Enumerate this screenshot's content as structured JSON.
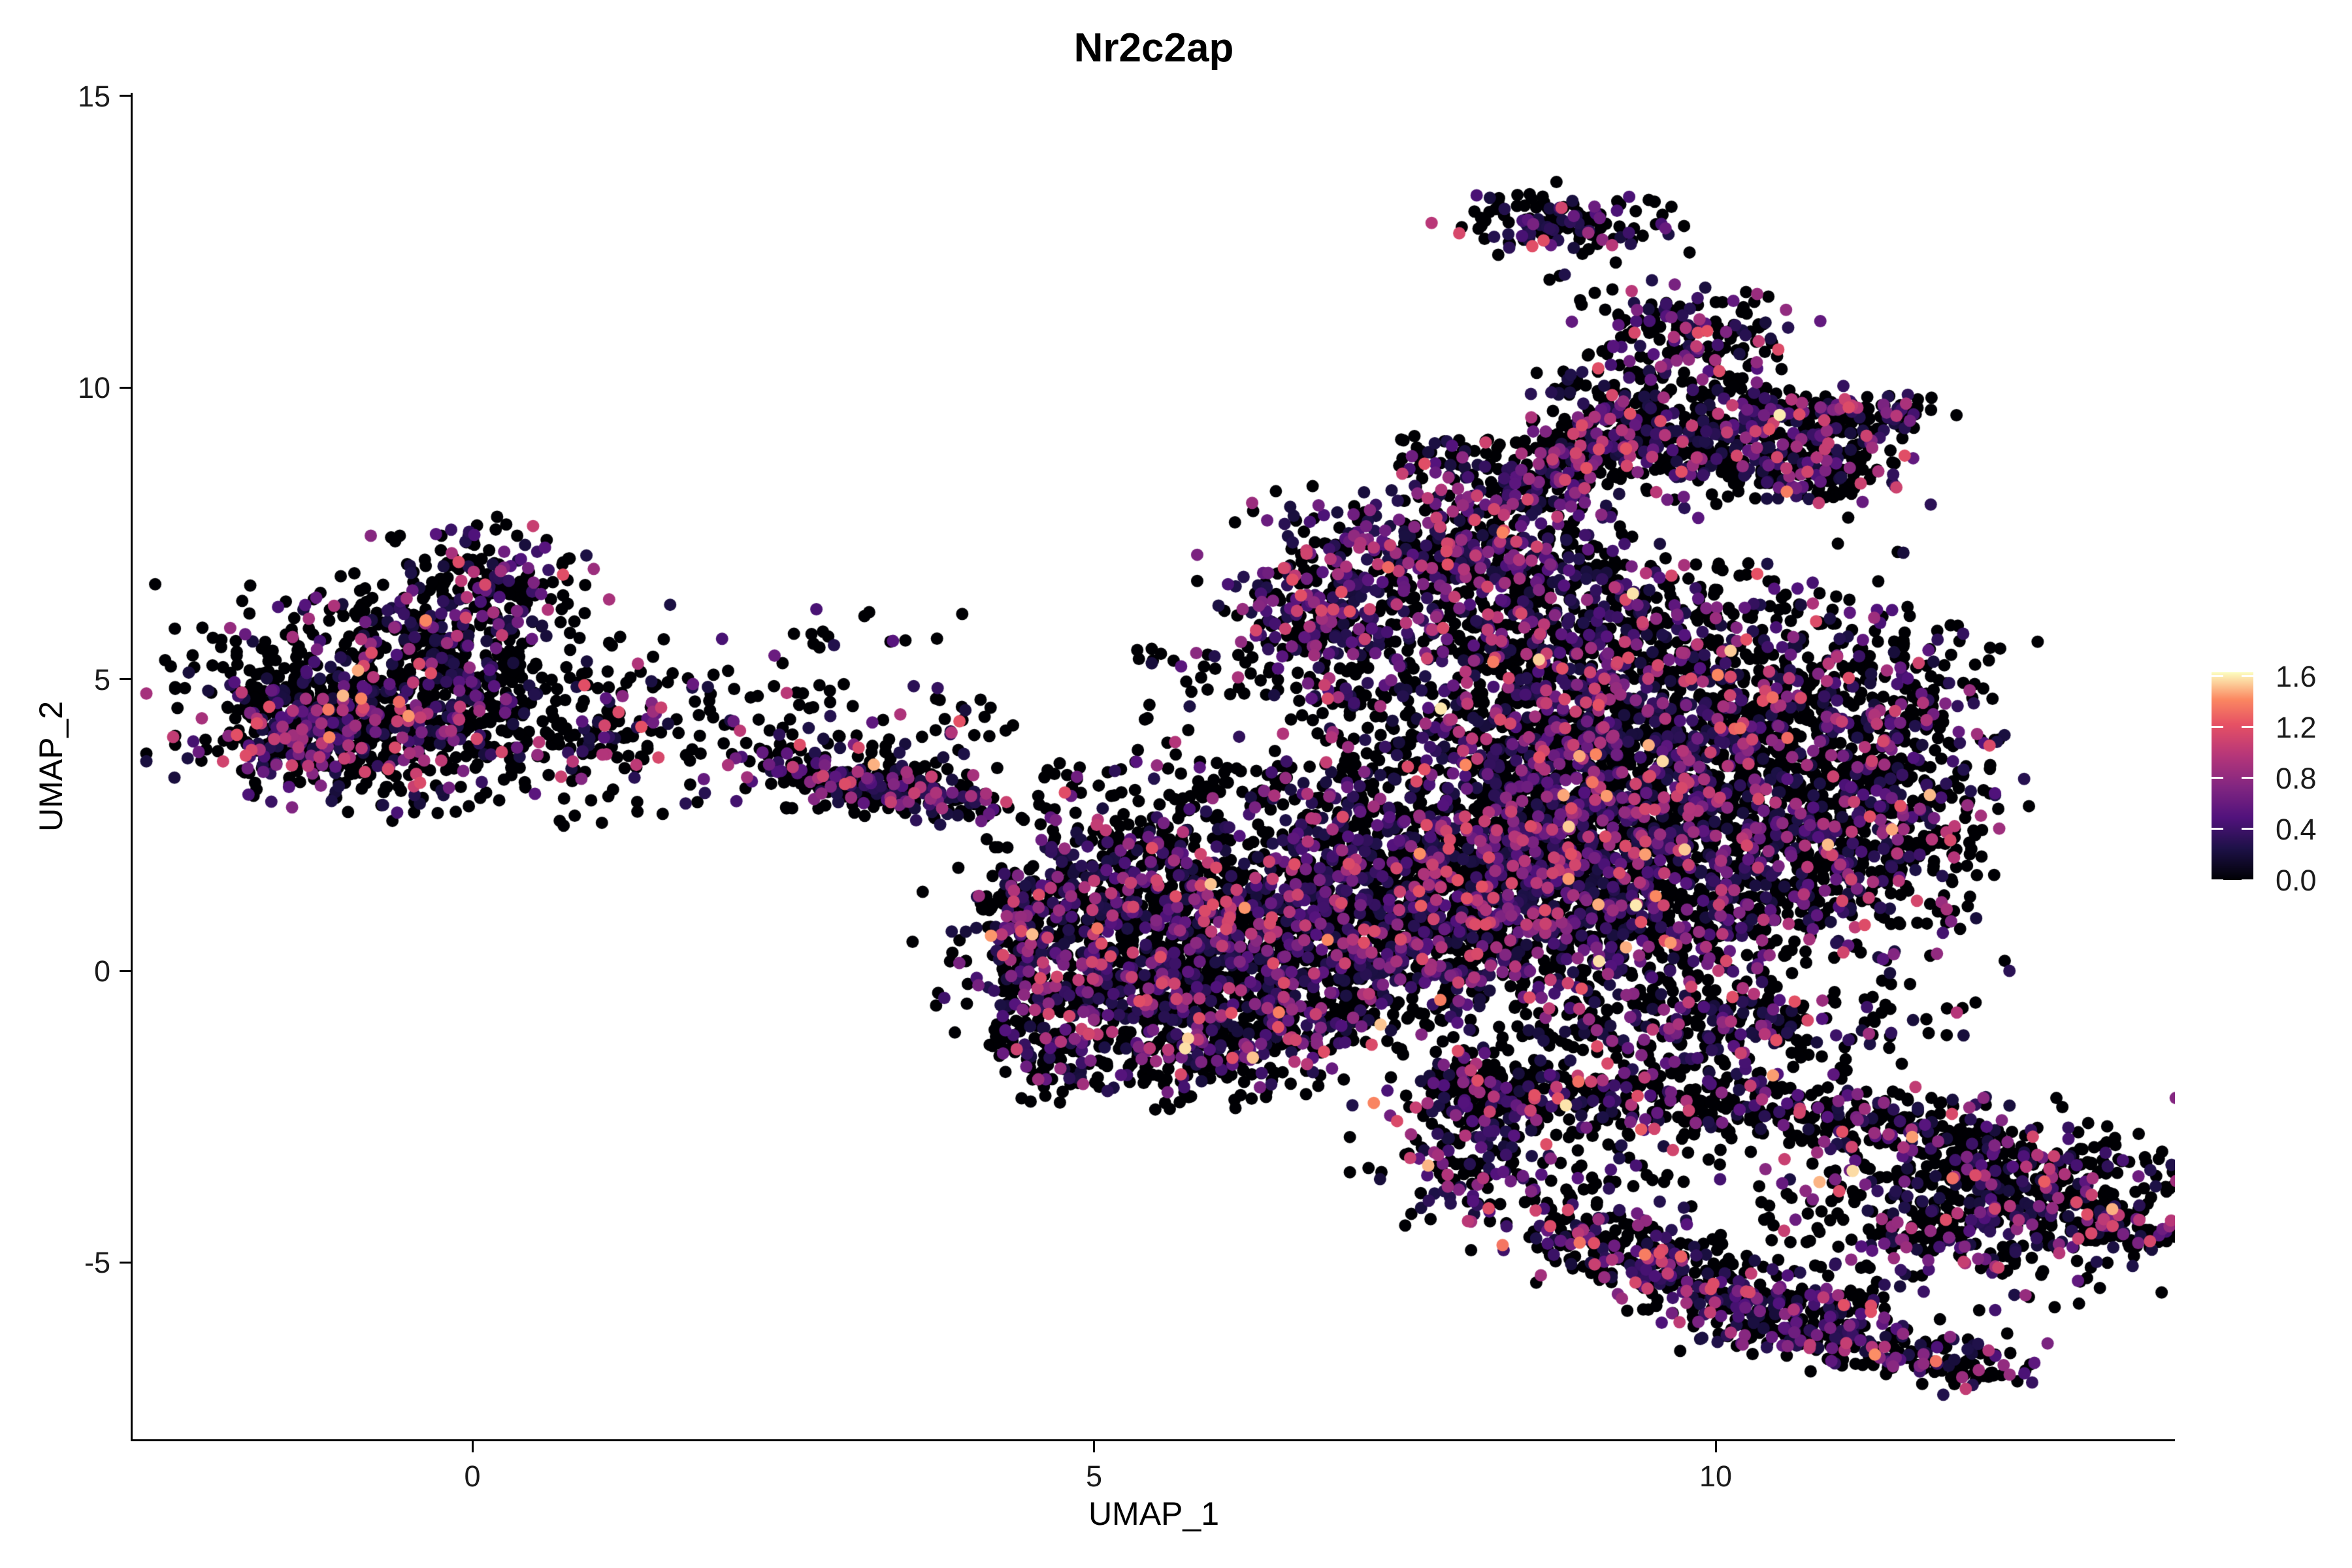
{
  "title": "Nr2c2ap",
  "chart_data": {
    "type": "scatter",
    "title": "Nr2c2ap",
    "xlabel": "UMAP_1",
    "ylabel": "UMAP_2",
    "xlim": [
      -2.7,
      13.7
    ],
    "ylim": [
      -8.0,
      15.1
    ],
    "grid": false,
    "x_ticks": [
      {
        "label": "0",
        "value": 0
      },
      {
        "label": "5",
        "value": 5
      },
      {
        "label": "10",
        "value": 10
      }
    ],
    "y_ticks": [
      {
        "label": "15",
        "value": 15
      },
      {
        "label": "10",
        "value": 10
      },
      {
        "label": "5",
        "value": 5
      },
      {
        "label": "0",
        "value": 0
      },
      {
        "label": "-5",
        "value": -5
      }
    ],
    "colorbar": {
      "position": "right",
      "ticks": [
        {
          "label": "1.6",
          "value": 1.6
        },
        {
          "label": "1.2",
          "value": 1.2
        },
        {
          "label": "0.8",
          "value": 0.8
        },
        {
          "label": "0.4",
          "value": 0.4
        },
        {
          "label": "0.0",
          "value": 0.0
        }
      ],
      "value_max": 1.63,
      "palette_name": "magma",
      "palette": [
        [
          0.0,
          "#000004"
        ],
        [
          0.15,
          "#1d1147"
        ],
        [
          0.3,
          "#51127c"
        ],
        [
          0.45,
          "#822681"
        ],
        [
          0.6,
          "#b63679"
        ],
        [
          0.75,
          "#e65164"
        ],
        [
          0.87,
          "#fb8861"
        ],
        [
          1.0,
          "#fcfdbf"
        ]
      ]
    },
    "point_radius_px": 9.5,
    "seed": 1337,
    "clusters": [
      {
        "kind": "gauss",
        "cx": -0.75,
        "cy": 4.6,
        "sx": 0.72,
        "sy": 0.78,
        "n": 600,
        "p0": 0.66
      },
      {
        "kind": "gauss",
        "cx": -1.35,
        "cy": 4.2,
        "sx": 0.4,
        "sy": 0.5,
        "n": 280,
        "p0": 0.6
      },
      {
        "kind": "gauss",
        "cx": -0.2,
        "cy": 5.9,
        "sx": 0.5,
        "sy": 0.6,
        "n": 260,
        "p0": 0.66
      },
      {
        "kind": "gauss",
        "cx": 0.15,
        "cy": 6.9,
        "sx": 0.33,
        "sy": 0.35,
        "n": 100,
        "p0": 0.58
      },
      {
        "kind": "gauss",
        "cx": 0.5,
        "cy": 3.9,
        "sx": 0.75,
        "sy": 0.6,
        "n": 170,
        "p0": 0.7
      },
      {
        "kind": "gauss",
        "cx": 1.6,
        "cy": 4.5,
        "sx": 0.9,
        "sy": 0.85,
        "n": 110,
        "p0": 0.74
      },
      {
        "kind": "box",
        "x0": 2.6,
        "y0": 5.5,
        "x1": 3.5,
        "y1": 6.3,
        "n": 8,
        "p0": 0.55
      },
      {
        "kind": "chain",
        "x1": 2.35,
        "y1": 3.55,
        "x2": 4.25,
        "y2": 2.75,
        "w": 0.17,
        "n": 170,
        "p0": 0.58
      },
      {
        "kind": "gauss",
        "cx": 3.35,
        "cy": 3.25,
        "sx": 0.3,
        "sy": 0.25,
        "n": 70,
        "p0": 0.58
      },
      {
        "kind": "box",
        "x0": 2.5,
        "y0": 3.7,
        "x1": 4.4,
        "y1": 4.6,
        "n": 25,
        "p0": 0.8
      },
      {
        "kind": "box",
        "x0": 1.8,
        "y0": 2.6,
        "x1": 4.3,
        "y1": 5.8,
        "n": 50,
        "p0": 0.8
      },
      {
        "kind": "gauss",
        "cx": 4.75,
        "cy": 0.9,
        "sx": 0.5,
        "sy": 0.65,
        "n": 230,
        "p0": 0.6
      },
      {
        "kind": "gauss",
        "cx": 4.9,
        "cy": -0.3,
        "sx": 0.45,
        "sy": 0.6,
        "n": 220,
        "p0": 0.62
      },
      {
        "kind": "gauss",
        "cx": 5.5,
        "cy": 0.3,
        "sx": 0.55,
        "sy": 0.7,
        "n": 260,
        "p0": 0.6
      },
      {
        "kind": "gauss",
        "cx": 6.1,
        "cy": -0.6,
        "sx": 0.55,
        "sy": 0.6,
        "n": 260,
        "p0": 0.62
      },
      {
        "kind": "gauss",
        "cx": 6.2,
        "cy": 0.9,
        "sx": 0.55,
        "sy": 0.6,
        "n": 250,
        "p0": 0.6
      },
      {
        "kind": "gauss",
        "cx": 6.8,
        "cy": 0.1,
        "sx": 0.5,
        "sy": 0.65,
        "n": 240,
        "p0": 0.62
      },
      {
        "kind": "gauss",
        "cx": 5.4,
        "cy": 1.7,
        "sx": 0.5,
        "sy": 0.5,
        "n": 200,
        "p0": 0.64
      },
      {
        "kind": "gauss",
        "cx": 6.9,
        "cy": 1.6,
        "sx": 0.5,
        "sy": 0.55,
        "n": 200,
        "p0": 0.62
      },
      {
        "kind": "gauss",
        "cx": 5.8,
        "cy": -1.4,
        "sx": 0.6,
        "sy": 0.45,
        "n": 200,
        "p0": 0.66
      },
      {
        "kind": "chain",
        "x1": 4.55,
        "y1": -0.9,
        "x2": 4.75,
        "y2": -2.1,
        "w": 0.18,
        "n": 70,
        "p0": 0.7
      },
      {
        "kind": "box",
        "x0": 4.6,
        "y0": 2.2,
        "x1": 7.2,
        "y1": 3.6,
        "n": 130,
        "p0": 0.74
      },
      {
        "kind": "box",
        "x0": 5.3,
        "y0": 3.4,
        "x1": 7.6,
        "y1": 5.6,
        "n": 90,
        "p0": 0.76
      },
      {
        "kind": "box",
        "x0": 4.25,
        "y0": -0.8,
        "x1": 4.6,
        "y1": 1.8,
        "n": 60,
        "p0": 0.7
      },
      {
        "kind": "gauss",
        "cx": 8.0,
        "cy": 0.6,
        "sx": 0.75,
        "sy": 0.85,
        "n": 650,
        "p0": 0.62
      },
      {
        "kind": "gauss",
        "cx": 9.2,
        "cy": 1.4,
        "sx": 0.85,
        "sy": 0.9,
        "n": 750,
        "p0": 0.63
      },
      {
        "kind": "gauss",
        "cx": 10.3,
        "cy": 2.3,
        "sx": 0.8,
        "sy": 0.9,
        "n": 650,
        "p0": 0.63
      },
      {
        "kind": "gauss",
        "cx": 8.6,
        "cy": 2.8,
        "sx": 0.8,
        "sy": 0.85,
        "n": 650,
        "p0": 0.6
      },
      {
        "kind": "gauss",
        "cx": 9.7,
        "cy": 3.9,
        "sx": 0.85,
        "sy": 0.85,
        "n": 600,
        "p0": 0.62
      },
      {
        "kind": "gauss",
        "cx": 8.3,
        "cy": 4.6,
        "sx": 0.7,
        "sy": 0.75,
        "n": 420,
        "p0": 0.6
      },
      {
        "kind": "gauss",
        "cx": 10.9,
        "cy": 4.6,
        "sx": 0.65,
        "sy": 0.8,
        "n": 330,
        "p0": 0.65
      },
      {
        "kind": "gauss",
        "cx": 9.3,
        "cy": 5.8,
        "sx": 0.85,
        "sy": 0.7,
        "n": 430,
        "p0": 0.62
      },
      {
        "kind": "gauss",
        "cx": 8.3,
        "cy": 6.9,
        "sx": 0.6,
        "sy": 0.6,
        "n": 280,
        "p0": 0.58
      },
      {
        "kind": "gauss",
        "cx": 11.35,
        "cy": 2.6,
        "sx": 0.45,
        "sy": 1.0,
        "n": 280,
        "p0": 0.66
      },
      {
        "kind": "gauss",
        "cx": 9.9,
        "cy": -0.9,
        "sx": 0.9,
        "sy": 0.45,
        "n": 330,
        "p0": 0.64
      },
      {
        "kind": "gauss",
        "cx": 7.35,
        "cy": 1.5,
        "sx": 0.45,
        "sy": 0.9,
        "n": 230,
        "p0": 0.64
      },
      {
        "kind": "gauss",
        "cx": 7.0,
        "cy": 6.6,
        "sx": 0.45,
        "sy": 0.75,
        "n": 260,
        "p0": 0.42
      },
      {
        "kind": "gauss",
        "cx": 6.75,
        "cy": 6.0,
        "sx": 0.3,
        "sy": 0.4,
        "n": 90,
        "p0": 0.5
      },
      {
        "kind": "chain",
        "x1": 8.0,
        "y1": -1.5,
        "x2": 8.3,
        "y2": -2.1,
        "w": 0.25,
        "n": 50,
        "p0": 0.7
      },
      {
        "kind": "gauss",
        "cx": 7.95,
        "cy": 7.6,
        "sx": 0.38,
        "sy": 0.55,
        "n": 150,
        "p0": 0.48
      },
      {
        "kind": "chain",
        "x1": 8.35,
        "y1": 8.1,
        "x2": 9.25,
        "y2": 9.1,
        "w": 0.3,
        "n": 220,
        "p0": 0.55
      },
      {
        "kind": "gauss",
        "cx": 9.45,
        "cy": 9.25,
        "sx": 0.5,
        "sy": 0.45,
        "n": 250,
        "p0": 0.56
      },
      {
        "kind": "chain",
        "x1": 9.9,
        "y1": 8.6,
        "x2": 11.2,
        "y2": 9.35,
        "w": 0.32,
        "n": 240,
        "p0": 0.6
      },
      {
        "kind": "chain",
        "x1": 10.25,
        "y1": 9.58,
        "x2": 11.65,
        "y2": 9.62,
        "w": 0.12,
        "n": 130,
        "p0": 0.6
      },
      {
        "kind": "gauss",
        "cx": 10.95,
        "cy": 8.55,
        "sx": 0.3,
        "sy": 0.3,
        "n": 90,
        "p0": 0.55
      },
      {
        "kind": "box",
        "x0": 8.6,
        "y0": 9.8,
        "x1": 10.6,
        "y1": 10.4,
        "n": 60,
        "p0": 0.72
      },
      {
        "kind": "gauss",
        "cx": 9.75,
        "cy": 10.95,
        "sx": 0.42,
        "sy": 0.38,
        "n": 170,
        "p0": 0.58
      },
      {
        "kind": "gauss",
        "cx": 8.75,
        "cy": 12.85,
        "sx": 0.4,
        "sy": 0.26,
        "n": 140,
        "p0": 0.56
      },
      {
        "kind": "box",
        "x0": 8.5,
        "y0": 11.7,
        "x1": 9.2,
        "y1": 12.3,
        "n": 5,
        "p0": 0.5
      },
      {
        "kind": "box",
        "x0": 7.4,
        "y0": 8.4,
        "x1": 8.2,
        "y1": 9.2,
        "n": 40,
        "p0": 0.7
      },
      {
        "kind": "chain",
        "x1": 7.95,
        "y1": -2.05,
        "x2": 11.6,
        "y2": -2.55,
        "w": 0.33,
        "n": 420,
        "p0": 0.68
      },
      {
        "kind": "gauss",
        "cx": 8.15,
        "cy": -3.1,
        "sx": 0.42,
        "sy": 0.65,
        "n": 190,
        "p0": 0.55
      },
      {
        "kind": "chain",
        "x1": 8.75,
        "y1": -4.45,
        "x2": 9.9,
        "y2": -5.45,
        "w": 0.3,
        "n": 220,
        "p0": 0.55
      },
      {
        "kind": "chain",
        "x1": 9.9,
        "y1": -5.45,
        "x2": 11.15,
        "y2": -5.85,
        "w": 0.28,
        "n": 200,
        "p0": 0.58
      },
      {
        "kind": "gauss",
        "cx": 12.3,
        "cy": -4.0,
        "sx": 0.75,
        "sy": 0.7,
        "n": 480,
        "p0": 0.66
      },
      {
        "kind": "chain",
        "x1": 13.0,
        "y1": -4.3,
        "x2": 13.55,
        "y2": -4.6,
        "w": 0.2,
        "n": 60,
        "p0": 0.62
      },
      {
        "kind": "chain",
        "x1": 11.7,
        "y1": -2.8,
        "x2": 13.1,
        "y2": -3.8,
        "w": 0.3,
        "n": 160,
        "p0": 0.68
      },
      {
        "kind": "chain",
        "x1": 10.1,
        "y1": -6.1,
        "x2": 12.35,
        "y2": -6.85,
        "w": 0.22,
        "n": 220,
        "p0": 0.6
      },
      {
        "kind": "box",
        "x0": 8.8,
        "y0": -5.2,
        "x1": 11.6,
        "y1": -2.7,
        "n": 110,
        "p0": 0.72
      },
      {
        "kind": "box",
        "x0": 7.6,
        "y0": -2.6,
        "x1": 8.3,
        "y1": -1.6,
        "n": 40,
        "p0": 0.7
      }
    ]
  }
}
